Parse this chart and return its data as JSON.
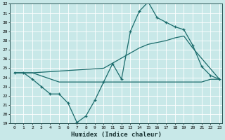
{
  "xlabel": "Humidex (Indice chaleur)",
  "background_color": "#c8e8e8",
  "grid_color": "#ffffff",
  "line_color": "#1a6b6b",
  "x_min": 0,
  "x_max": 23,
  "y_min": 19,
  "y_max": 32,
  "line1_x": [
    0,
    1,
    2,
    3,
    4,
    5,
    6,
    7,
    8,
    9,
    10,
    11,
    12,
    13,
    14,
    15,
    16,
    17,
    18,
    19,
    20,
    21,
    22,
    23
  ],
  "line1_y": [
    24.5,
    24.5,
    23.8,
    23.0,
    22.2,
    22.2,
    21.2,
    19.1,
    19.8,
    21.5,
    23.5,
    25.5,
    23.8,
    29.0,
    31.2,
    32.2,
    30.5,
    30.0,
    29.5,
    29.2,
    27.5,
    25.2,
    24.2,
    23.8
  ],
  "line2_x": [
    0,
    2,
    10,
    14,
    15,
    17,
    18,
    19,
    20,
    23
  ],
  "line2_y": [
    24.5,
    24.5,
    25.0,
    27.2,
    27.6,
    28.0,
    28.3,
    28.5,
    27.2,
    23.8
  ],
  "line3_x": [
    0,
    2,
    5,
    10,
    13,
    14,
    20,
    21,
    22,
    23
  ],
  "line3_y": [
    24.5,
    24.5,
    23.5,
    23.5,
    23.5,
    23.5,
    23.5,
    23.5,
    23.8,
    23.8
  ]
}
